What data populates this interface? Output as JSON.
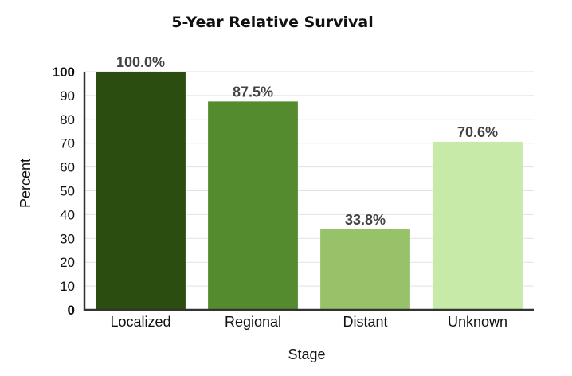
{
  "chart_data": {
    "type": "bar",
    "title": "5-Year Relative Survival",
    "xlabel": "Stage",
    "ylabel": "Percent",
    "categories": [
      "Localized",
      "Regional",
      "Distant",
      "Unknown"
    ],
    "values": [
      100.0,
      87.5,
      33.8,
      70.6
    ],
    "data_labels": [
      "100.0%",
      "87.5%",
      "33.8%",
      "70.6%"
    ],
    "colors": [
      "#2b4d10",
      "#558b2f",
      "#97c26a",
      "#c8eaa8"
    ],
    "ylim": [
      0,
      100
    ],
    "yticks": [
      "0",
      "10",
      "20",
      "30",
      "40",
      "50",
      "60",
      "70",
      "80",
      "90",
      "100"
    ],
    "grid": true,
    "legend": "none"
  }
}
